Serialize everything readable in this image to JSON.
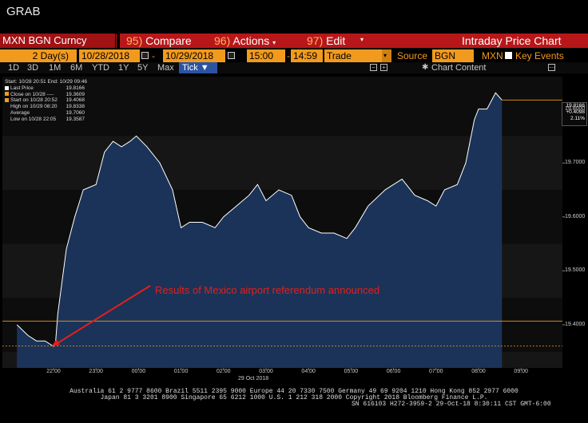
{
  "window": {
    "title": "GRAB"
  },
  "toolbar": {
    "ticker": "MXN BGN Curncy",
    "compare_num": "95)",
    "compare": "Compare",
    "actions_num": "96)",
    "actions": "Actions",
    "edit_num": "97)",
    "edit": "Edit",
    "chart_title": "Intraday Price Chart"
  },
  "params": {
    "days_value": "2",
    "days_unit": "Day(s)",
    "start_date": "10/28/2018",
    "dash": "-",
    "end_date": "10/29/2018",
    "start_time": "15:00",
    "end_time": "14:59",
    "field": "Trade",
    "source_label": "Source",
    "source": "BGN",
    "currency": "MXN",
    "key_events": "Key Events"
  },
  "periods": [
    "1D",
    "3D",
    "1M",
    "6M",
    "YTD",
    "1Y",
    "5Y",
    "Max"
  ],
  "tick_label": "Tick ▼",
  "chart_content": "Chart Content",
  "legend": {
    "header": "Start: 10/28 20:51 End: 10/29 09:46",
    "rows": [
      {
        "label": "Last Price",
        "value": "19.8166",
        "color": "#ffffff"
      },
      {
        "label": "Close on 10/28 ----",
        "value": "19.3609",
        "color": "#f29a1e"
      },
      {
        "label": "Start on 10/28 20:52",
        "value": "19.4068",
        "color": "#f29a1e"
      },
      {
        "label": "High on 10/29 08:20",
        "value": "19.8338",
        "color": "#ffffff"
      },
      {
        "label": "Average",
        "value": "19.7060",
        "color": "#ffffff"
      },
      {
        "label": "Low on 10/28 22:05",
        "value": "19.3587",
        "color": "#ffffff"
      }
    ]
  },
  "tooltip": {
    "price": "19.8166",
    "change": "+0.4098",
    "pct": "2.11%"
  },
  "annotation": "Results of Mexico airport referendum announced",
  "footer": {
    "line1": "Australia 61 2 9777 8600 Brazil 5511 2395 9000 Europe 44 20 7330 7500 Germany 49 69 9204 1210 Hong Kong 852 2977 6000",
    "line2": "Japan 81 3 3201 8900       Singapore 65 6212 1000       U.S. 1 212 318 2000             Copyright 2018 Bloomberg Finance L.P.",
    "line3": "SN 616103 H272-3959-2 29-Oct-18  8:30:11 CST  GMT-6:00"
  },
  "chart_data": {
    "type": "area",
    "xlabel": "29 Oct 2018",
    "x_ticks": [
      "22:00",
      "23:00",
      "00:00",
      "01:00",
      "02:00",
      "03:00",
      "04:00",
      "05:00",
      "06:00",
      "07:00",
      "08:00",
      "09:00"
    ],
    "y_ticks": [
      19.4,
      19.5,
      19.6,
      19.7,
      19.8
    ],
    "ylim": [
      19.32,
      19.86
    ],
    "x_hours": [
      -2.86,
      -2.6,
      -2.4,
      -2.2,
      -2.0,
      -1.95,
      -1.9,
      -1.7,
      -1.5,
      -1.3,
      -1.0,
      -0.8,
      -0.6,
      -0.4,
      -0.2,
      -0.05,
      0.2,
      0.5,
      0.8,
      1.0,
      1.2,
      1.5,
      1.8,
      2.0,
      2.3,
      2.6,
      2.8,
      3.0,
      3.3,
      3.6,
      3.8,
      4.0,
      4.3,
      4.6,
      4.9,
      5.1,
      5.4,
      5.8,
      6.0,
      6.2,
      6.5,
      6.8,
      7.0,
      7.2,
      7.5,
      7.7,
      7.9,
      8.0,
      8.2,
      8.4,
      8.55
    ],
    "y_values": [
      19.4,
      19.38,
      19.37,
      19.37,
      19.36,
      19.37,
      19.42,
      19.54,
      19.6,
      19.65,
      19.66,
      19.72,
      19.74,
      19.73,
      19.74,
      19.75,
      19.73,
      19.7,
      19.65,
      19.58,
      19.59,
      19.59,
      19.58,
      19.6,
      19.62,
      19.64,
      19.66,
      19.63,
      19.65,
      19.64,
      19.6,
      19.58,
      19.57,
      19.57,
      19.56,
      19.58,
      19.62,
      19.65,
      19.66,
      19.67,
      19.64,
      19.63,
      19.62,
      19.65,
      19.66,
      19.7,
      19.78,
      19.8,
      19.8,
      19.83,
      19.8166
    ],
    "series": [
      {
        "name": "Last Price",
        "color": "#ffffff",
        "fill": "#1c3357"
      }
    ],
    "ref_lines": [
      {
        "name": "Start on 10/28 20:52",
        "value": 19.4068,
        "color": "#f29a1e"
      },
      {
        "name": "Close on 10/28",
        "value": 19.3609,
        "color": "#f29a1e"
      },
      {
        "name": "Last Price",
        "value": 19.8166,
        "color": "#f29a1e"
      }
    ],
    "annotation_target": {
      "x_hour": -2.05,
      "y": 19.36
    }
  }
}
